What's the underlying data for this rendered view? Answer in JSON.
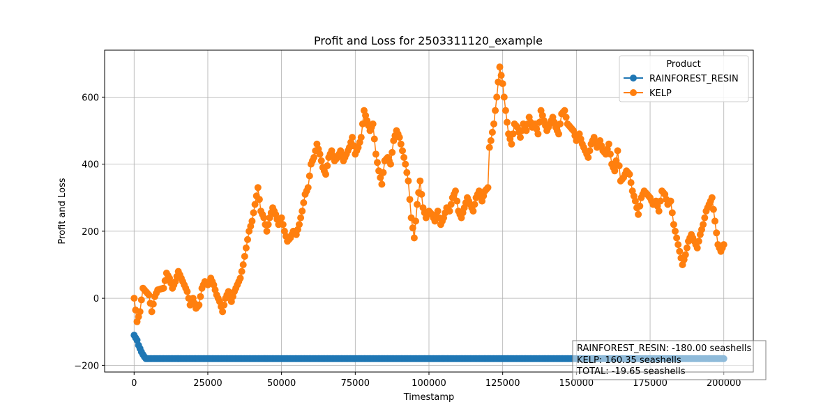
{
  "chart_data": {
    "type": "line",
    "title": "Profit and Loss for 2503311120_example",
    "xlabel": "Timestamp",
    "ylabel": "Profit and Loss",
    "xlim": [
      -10000,
      210000
    ],
    "ylim": [
      -220,
      740
    ],
    "xticks": [
      0,
      25000,
      50000,
      75000,
      100000,
      125000,
      150000,
      175000,
      200000
    ],
    "yticks": [
      -200,
      0,
      200,
      400,
      600
    ],
    "grid": true,
    "legend": {
      "title": "Product",
      "placement": "top-right"
    },
    "series": [
      {
        "name": "RAINFOREST_RESIN",
        "color": "#1f77b4",
        "marker": "circle",
        "points": [
          [
            0,
            -110
          ],
          [
            500,
            -118
          ],
          [
            1000,
            -125
          ],
          [
            1500,
            -140
          ],
          [
            2000,
            -150
          ],
          [
            2500,
            -160
          ],
          [
            3000,
            -168
          ],
          [
            3500,
            -175
          ],
          [
            4000,
            -180
          ],
          [
            5000,
            -180
          ],
          [
            10000,
            -180
          ],
          [
            25000,
            -180
          ],
          [
            50000,
            -180
          ],
          [
            75000,
            -180
          ],
          [
            100000,
            -180
          ],
          [
            125000,
            -180
          ],
          [
            150000,
            -180
          ],
          [
            175000,
            -180
          ],
          [
            200000,
            -180
          ]
        ]
      },
      {
        "name": "KELP",
        "color": "#ff7f0e",
        "marker": "circle",
        "points": [
          [
            0,
            0
          ],
          [
            1000,
            -70
          ],
          [
            2000,
            -40
          ],
          [
            3000,
            30
          ],
          [
            4000,
            20
          ],
          [
            5000,
            10
          ],
          [
            6000,
            -40
          ],
          [
            7000,
            5
          ],
          [
            8000,
            25
          ],
          [
            10000,
            30
          ],
          [
            11000,
            75
          ],
          [
            12000,
            60
          ],
          [
            13000,
            30
          ],
          [
            14000,
            50
          ],
          [
            15000,
            80
          ],
          [
            16000,
            60
          ],
          [
            17000,
            40
          ],
          [
            18000,
            20
          ],
          [
            19000,
            -20
          ],
          [
            20000,
            0
          ],
          [
            21000,
            -30
          ],
          [
            22000,
            -20
          ],
          [
            23000,
            30
          ],
          [
            24000,
            50
          ],
          [
            25000,
            40
          ],
          [
            26000,
            60
          ],
          [
            27000,
            40
          ],
          [
            28000,
            10
          ],
          [
            29000,
            -10
          ],
          [
            30000,
            -40
          ],
          [
            31000,
            0
          ],
          [
            32000,
            20
          ],
          [
            33000,
            -10
          ],
          [
            34000,
            20
          ],
          [
            35000,
            40
          ],
          [
            36000,
            60
          ],
          [
            37000,
            100
          ],
          [
            38000,
            150
          ],
          [
            39000,
            200
          ],
          [
            40000,
            230
          ],
          [
            41000,
            280
          ],
          [
            42000,
            330
          ],
          [
            43000,
            260
          ],
          [
            44000,
            240
          ],
          [
            45000,
            200
          ],
          [
            46000,
            240
          ],
          [
            47000,
            270
          ],
          [
            48000,
            250
          ],
          [
            49000,
            220
          ],
          [
            50000,
            240
          ],
          [
            51000,
            200
          ],
          [
            52000,
            170
          ],
          [
            53000,
            180
          ],
          [
            54000,
            200
          ],
          [
            55000,
            190
          ],
          [
            56000,
            220
          ],
          [
            57000,
            260
          ],
          [
            58000,
            310
          ],
          [
            59000,
            330
          ],
          [
            60000,
            400
          ],
          [
            61000,
            420
          ],
          [
            62000,
            460
          ],
          [
            63000,
            430
          ],
          [
            64000,
            390
          ],
          [
            65000,
            370
          ],
          [
            66000,
            420
          ],
          [
            67000,
            440
          ],
          [
            68000,
            410
          ],
          [
            69000,
            420
          ],
          [
            70000,
            440
          ],
          [
            71000,
            410
          ],
          [
            72000,
            430
          ],
          [
            73000,
            450
          ],
          [
            74000,
            480
          ],
          [
            75000,
            430
          ],
          [
            76000,
            450
          ],
          [
            77000,
            480
          ],
          [
            78000,
            560
          ],
          [
            79000,
            530
          ],
          [
            80000,
            500
          ],
          [
            81000,
            520
          ],
          [
            82000,
            430
          ],
          [
            83000,
            380
          ],
          [
            84000,
            340
          ],
          [
            85000,
            410
          ],
          [
            86000,
            420
          ],
          [
            87000,
            400
          ],
          [
            88000,
            470
          ],
          [
            89000,
            500
          ],
          [
            90000,
            480
          ],
          [
            91000,
            440
          ],
          [
            92000,
            400
          ],
          [
            93000,
            350
          ],
          [
            94000,
            240
          ],
          [
            95000,
            180
          ],
          [
            96000,
            280
          ],
          [
            97000,
            350
          ],
          [
            98000,
            270
          ],
          [
            99000,
            240
          ],
          [
            100000,
            260
          ],
          [
            101000,
            250
          ],
          [
            102000,
            230
          ],
          [
            103000,
            260
          ],
          [
            104000,
            220
          ],
          [
            105000,
            240
          ],
          [
            106000,
            270
          ],
          [
            107000,
            260
          ],
          [
            108000,
            300
          ],
          [
            109000,
            320
          ],
          [
            110000,
            260
          ],
          [
            111000,
            240
          ],
          [
            112000,
            270
          ],
          [
            113000,
            300
          ],
          [
            114000,
            280
          ],
          [
            115000,
            260
          ],
          [
            116000,
            300
          ],
          [
            117000,
            320
          ],
          [
            118000,
            290
          ],
          [
            119000,
            320
          ],
          [
            120000,
            330
          ],
          [
            120500,
            450
          ],
          [
            121000,
            470
          ],
          [
            122000,
            520
          ],
          [
            123000,
            600
          ],
          [
            124000,
            690
          ],
          [
            125000,
            640
          ],
          [
            126000,
            560
          ],
          [
            127000,
            490
          ],
          [
            128000,
            460
          ],
          [
            129000,
            520
          ],
          [
            130000,
            510
          ],
          [
            131000,
            480
          ],
          [
            132000,
            520
          ],
          [
            133000,
            500
          ],
          [
            134000,
            540
          ],
          [
            135000,
            510
          ],
          [
            136000,
            520
          ],
          [
            137000,
            490
          ],
          [
            138000,
            560
          ],
          [
            139000,
            530
          ],
          [
            140000,
            500
          ],
          [
            141000,
            520
          ],
          [
            142000,
            540
          ],
          [
            143000,
            510
          ],
          [
            144000,
            490
          ],
          [
            145000,
            550
          ],
          [
            146000,
            560
          ],
          [
            147000,
            520
          ],
          [
            148000,
            510
          ],
          [
            149000,
            500
          ],
          [
            150000,
            470
          ],
          [
            151000,
            490
          ],
          [
            152000,
            460
          ],
          [
            153000,
            440
          ],
          [
            154000,
            420
          ],
          [
            155000,
            460
          ],
          [
            156000,
            480
          ],
          [
            157000,
            450
          ],
          [
            158000,
            470
          ],
          [
            159000,
            440
          ],
          [
            160000,
            430
          ],
          [
            161000,
            460
          ],
          [
            162000,
            400
          ],
          [
            163000,
            380
          ],
          [
            164000,
            440
          ],
          [
            165000,
            350
          ],
          [
            166000,
            360
          ],
          [
            167000,
            380
          ],
          [
            168000,
            370
          ],
          [
            169000,
            320
          ],
          [
            170000,
            290
          ],
          [
            171000,
            250
          ],
          [
            172000,
            300
          ],
          [
            173000,
            320
          ],
          [
            174000,
            310
          ],
          [
            175000,
            300
          ],
          [
            176000,
            280
          ],
          [
            177000,
            290
          ],
          [
            178000,
            260
          ],
          [
            179000,
            320
          ],
          [
            180000,
            310
          ],
          [
            181000,
            280
          ],
          [
            182000,
            290
          ],
          [
            183000,
            220
          ],
          [
            184000,
            180
          ],
          [
            185000,
            140
          ],
          [
            186000,
            100
          ],
          [
            187000,
            130
          ],
          [
            188000,
            170
          ],
          [
            189000,
            190
          ],
          [
            190000,
            170
          ],
          [
            191000,
            150
          ],
          [
            192000,
            190
          ],
          [
            193000,
            220
          ],
          [
            194000,
            260
          ],
          [
            195000,
            280
          ],
          [
            196000,
            300
          ],
          [
            197000,
            230
          ],
          [
            198000,
            160
          ],
          [
            199000,
            140
          ],
          [
            200000,
            160
          ]
        ]
      }
    ],
    "summary_lines": [
      "RAINFOREST_RESIN: -180.00 seashells",
      "KELP: 160.35 seashells",
      "TOTAL: -19.65 seashells"
    ]
  }
}
